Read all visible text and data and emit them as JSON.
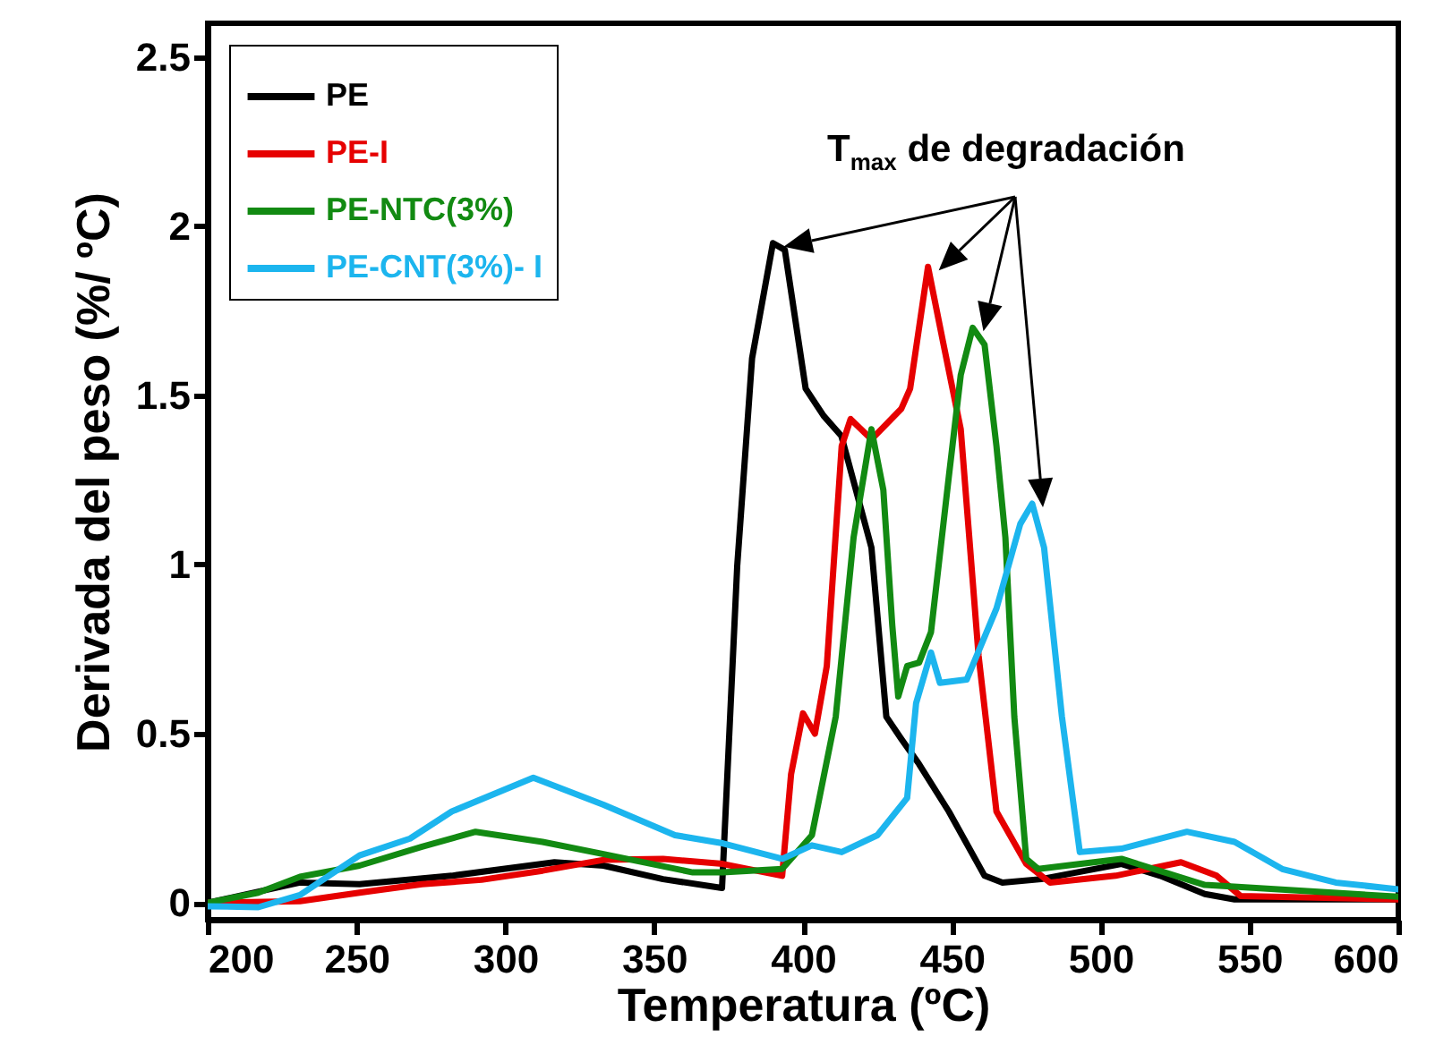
{
  "chart_data": {
    "type": "line",
    "xlabel": "Temperatura (ºC)",
    "ylabel": "Derivada del peso (%/ ºC)",
    "annotations": [
      "T$_{max}$ de  degradación"
    ],
    "xlim": [
      200,
      600
    ],
    "xticks": [
      200,
      250,
      300,
      350,
      400,
      450,
      500,
      550,
      600
    ],
    "ylim": [
      -0.05,
      2.6
    ],
    "yticks": [
      0,
      0.5,
      1,
      1.5,
      2,
      2.5
    ],
    "grid": false,
    "legend": "top left",
    "marker": "none",
    "line_style": "solid",
    "series": [
      {
        "name": "PE",
        "color": "#000000",
        "x": [
          200,
          231,
          251,
          282,
          316.5,
          333,
          353,
          372.8,
          377.9,
          382.9,
          389.9,
          393.9,
          400.9,
          406.9,
          412.9,
          423,
          428,
          433,
          439,
          449,
          461,
          467,
          480,
          507,
          520,
          535,
          545,
          600
        ],
        "values": [
          0,
          0.06,
          0.055,
          0.08,
          0.12,
          0.11,
          0.07,
          0.044,
          0.995,
          1.61,
          1.95,
          1.93,
          1.52,
          1.44,
          1.38,
          1.05,
          0.55,
          0.485,
          0.41,
          0.27,
          0.08,
          0.06,
          0.07,
          0.115,
          0.08,
          0.026,
          0.01,
          0.01
        ]
      },
      {
        "name": "PE-I",
        "color": "#e60000",
        "x": [
          200,
          231,
          251,
          272,
          292,
          312.5,
          333,
          353,
          373,
          393,
          396,
          400,
          404,
          408,
          413,
          416,
          423,
          433,
          436,
          442,
          447,
          453,
          459,
          465,
          475,
          483,
          505,
          527,
          539,
          547,
          600
        ],
        "values": [
          0,
          0.005,
          0.03,
          0.055,
          0.068,
          0.095,
          0.127,
          0.13,
          0.115,
          0.08,
          0.38,
          0.56,
          0.5,
          0.7,
          1.35,
          1.43,
          1.37,
          1.46,
          1.52,
          1.88,
          1.66,
          1.4,
          0.73,
          0.27,
          0.115,
          0.06,
          0.08,
          0.12,
          0.08,
          0.02,
          0.01
        ]
      },
      {
        "name": "PE-NTC(3%)",
        "color": "#128a12",
        "x": [
          200,
          217,
          231,
          251,
          272,
          290,
          312.5,
          333,
          363,
          373,
          393,
          403,
          411,
          417,
          423,
          427,
          430,
          432,
          435,
          439,
          443,
          449,
          453,
          457,
          461,
          465,
          468,
          471,
          475,
          479,
          507,
          535,
          600
        ],
        "values": [
          0,
          0.03,
          0.077,
          0.11,
          0.166,
          0.21,
          0.18,
          0.144,
          0.09,
          0.09,
          0.1,
          0.2,
          0.55,
          1.08,
          1.4,
          1.22,
          0.82,
          0.61,
          0.7,
          0.71,
          0.8,
          1.26,
          1.56,
          1.7,
          1.65,
          1.35,
          1.08,
          0.55,
          0.13,
          0.1,
          0.13,
          0.053,
          0.018
        ]
      },
      {
        "name": "PE-CNT(3%)- I",
        "color": "#1cb5ee",
        "x": [
          200,
          217,
          231,
          251,
          268,
          282,
          309.4,
          333,
          357,
          373,
          393,
          403,
          413,
          425,
          435,
          438,
          443,
          446,
          455,
          465,
          473,
          477,
          481,
          487,
          493,
          507,
          529,
          545,
          561,
          579,
          600
        ],
        "values": [
          -0.01,
          -0.013,
          0.023,
          0.14,
          0.19,
          0.27,
          0.37,
          0.29,
          0.2,
          0.176,
          0.13,
          0.17,
          0.15,
          0.2,
          0.31,
          0.59,
          0.74,
          0.65,
          0.66,
          0.87,
          1.12,
          1.18,
          1.05,
          0.55,
          0.15,
          0.16,
          0.21,
          0.18,
          0.1,
          0.06,
          0.04
        ]
      }
    ]
  }
}
